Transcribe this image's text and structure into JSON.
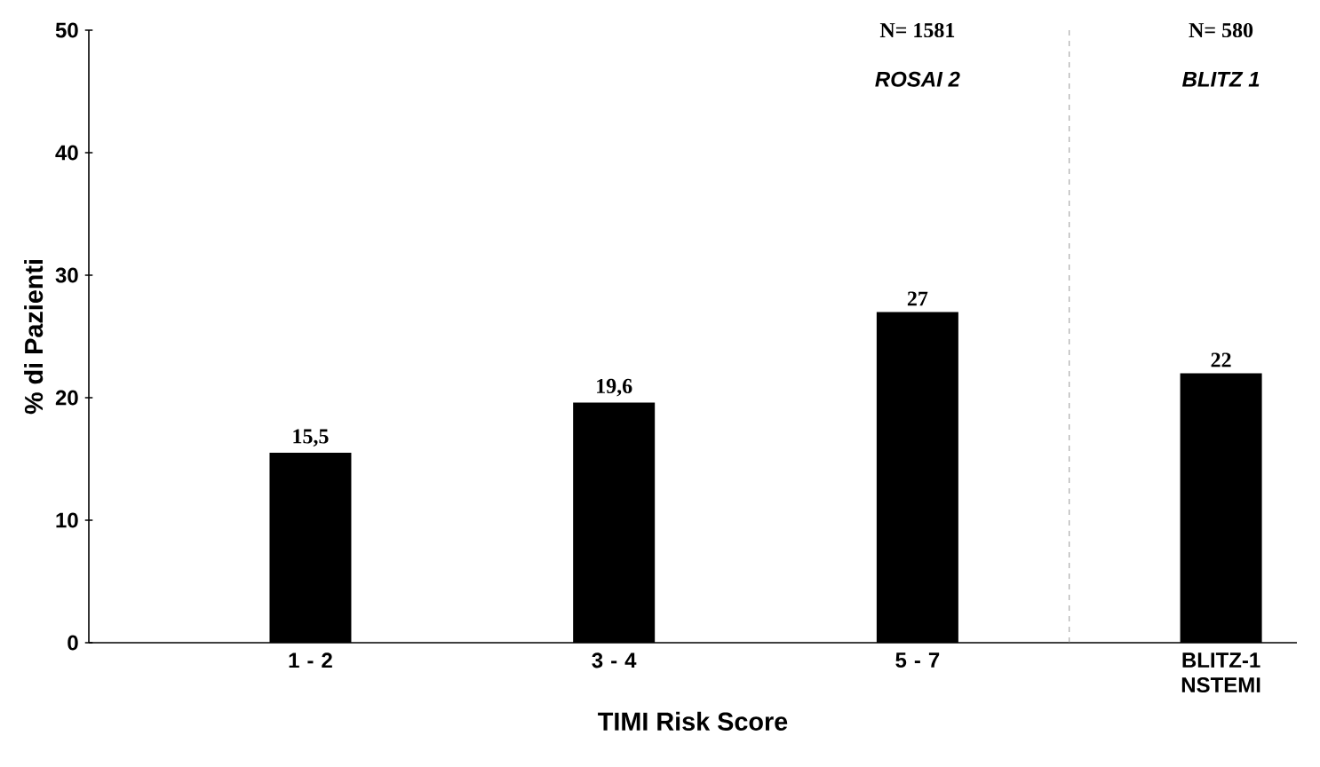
{
  "chart_data": {
    "type": "bar",
    "xlabel": "TIMI Risk Score",
    "ylabel": "% di Pazienti",
    "categories": [
      "1 - 2",
      "3 - 4",
      "5 - 7",
      "BLITZ-1 NSTEMI"
    ],
    "values": [
      15.5,
      19.6,
      27,
      22
    ],
    "color": "#000000",
    "value_labels": [
      "15,5",
      "19,6",
      "27",
      "22"
    ],
    "ylim": [
      0,
      50
    ],
    "yticks": [
      0,
      10,
      20,
      30,
      40,
      50
    ],
    "annotations": [
      "N= 1581",
      "ROSAI 2",
      "N= 580",
      "BLITZ 1"
    ]
  }
}
